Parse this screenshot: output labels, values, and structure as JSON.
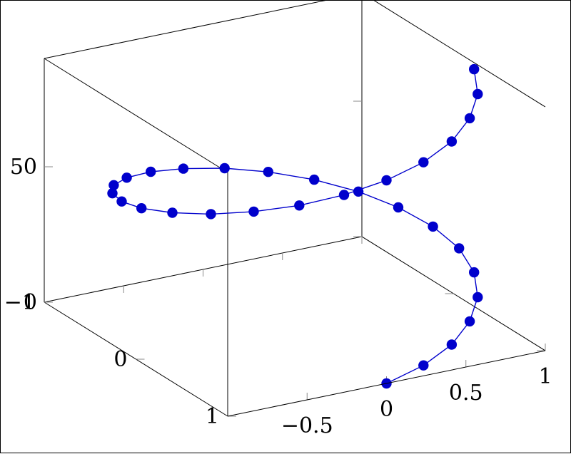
{
  "chart_data": {
    "type": "line",
    "subtype": "3d-helix",
    "title": "",
    "xlabel": "",
    "ylabel": "",
    "zlabel": "",
    "xlim": [
      -1,
      1
    ],
    "ylim": [
      -1,
      1
    ],
    "zlim": [
      0,
      90
    ],
    "x_ticks": [
      -0.5,
      0,
      0.5,
      1
    ],
    "x_tick_labels": [
      "−0.5",
      "0",
      "0.5",
      "1"
    ],
    "y_ticks": [
      -1,
      0,
      1
    ],
    "y_tick_labels": [
      "−1",
      "0",
      "1"
    ],
    "z_ticks": [
      0,
      50
    ],
    "z_tick_labels": [
      "0",
      "50"
    ],
    "grid": false,
    "series": [
      {
        "color": "#0000cc",
        "marker": "filled-circle",
        "line": "solid",
        "points": [
          {
            "x": 0.0,
            "y": 1.0,
            "z": 0
          },
          {
            "x": 0.25,
            "y": 0.97,
            "z": 3
          },
          {
            "x": 0.48,
            "y": 0.88,
            "z": 6
          },
          {
            "x": 0.68,
            "y": 0.73,
            "z": 9
          },
          {
            "x": 0.84,
            "y": 0.54,
            "z": 12
          },
          {
            "x": 0.95,
            "y": 0.31,
            "z": 15
          },
          {
            "x": 1.0,
            "y": 0.06,
            "z": 18
          },
          {
            "x": 0.98,
            "y": -0.19,
            "z": 21
          },
          {
            "x": 0.9,
            "y": -0.43,
            "z": 24
          },
          {
            "x": 0.77,
            "y": -0.64,
            "z": 27
          },
          {
            "x": 0.59,
            "y": -0.81,
            "z": 30
          },
          {
            "x": 0.37,
            "y": -0.93,
            "z": 33
          },
          {
            "x": 0.13,
            "y": -0.99,
            "z": 36
          },
          {
            "x": -0.13,
            "y": -0.99,
            "z": 39
          },
          {
            "x": -0.37,
            "y": -0.93,
            "z": 42
          },
          {
            "x": -0.59,
            "y": -0.81,
            "z": 45
          },
          {
            "x": -0.77,
            "y": -0.64,
            "z": 48
          },
          {
            "x": -0.9,
            "y": -0.43,
            "z": 51
          },
          {
            "x": -0.98,
            "y": -0.19,
            "z": 54
          },
          {
            "x": -1.0,
            "y": 0.06,
            "z": 57
          },
          {
            "x": -0.95,
            "y": 0.31,
            "z": 60
          },
          {
            "x": -0.84,
            "y": 0.54,
            "z": 63
          },
          {
            "x": -0.68,
            "y": 0.73,
            "z": 66
          },
          {
            "x": -0.48,
            "y": 0.88,
            "z": 69
          },
          {
            "x": -0.25,
            "y": 0.97,
            "z": 72
          },
          {
            "x": 0.0,
            "y": 1.0,
            "z": 75
          },
          {
            "x": 0.25,
            "y": 0.97,
            "z": 78
          },
          {
            "x": 0.48,
            "y": 0.88,
            "z": 81
          },
          {
            "x": 0.68,
            "y": 0.73,
            "z": 84
          },
          {
            "x": 0.84,
            "y": 0.54,
            "z": 87
          },
          {
            "x": 0.95,
            "y": 0.31,
            "z": 90
          }
        ]
      }
    ]
  }
}
